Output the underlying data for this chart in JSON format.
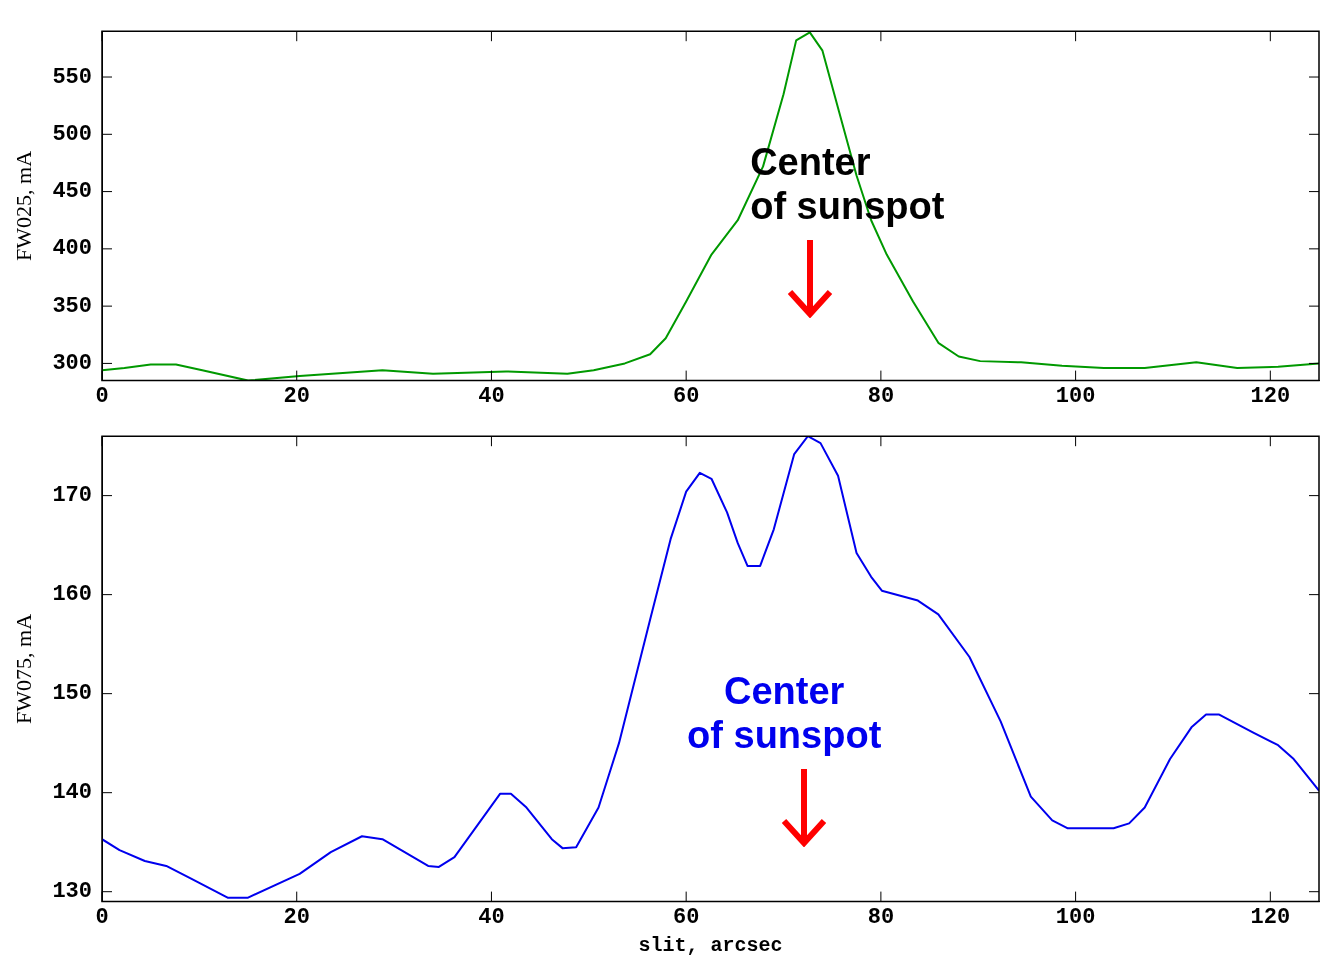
{
  "chart_data": [
    {
      "type": "line",
      "ylabel": "FW025, mA",
      "xlim": [
        0,
        125
      ],
      "xticks": [
        0,
        20,
        40,
        60,
        80,
        100,
        120
      ],
      "ylim": [
        285,
        590
      ],
      "yticks": [
        300,
        350,
        400,
        450,
        500,
        550
      ],
      "grid": false,
      "legend": false,
      "marker": "none",
      "line_style": "solid",
      "annotations": [
        "Center\nof sunspot"
      ],
      "series": [
        {
          "color": "#009900",
          "x": [
            0,
            2.3,
            5,
            7.6,
            10.3,
            15,
            20.3,
            28.8,
            34,
            41.5,
            47.8,
            50.5,
            53.7,
            56.3,
            57.9,
            60,
            62.6,
            65.3,
            67.9,
            70,
            71.3,
            72.7,
            74,
            75.6,
            77.5,
            79,
            80.6,
            83.3,
            85.9,
            88,
            90.2,
            94.4,
            98.6,
            102.9,
            107.1,
            112.4,
            116.6,
            120.8,
            125
          ],
          "values": [
            294,
            296,
            299,
            299,
            294,
            285,
            289,
            294,
            291,
            293,
            291,
            294,
            300,
            308,
            322,
            354,
            395,
            425,
            472,
            535,
            582,
            589,
            573,
            523,
            464,
            425,
            395,
            354,
            318,
            306,
            302,
            301,
            298,
            296,
            296,
            301,
            296,
            297,
            300
          ]
        }
      ]
    },
    {
      "type": "line",
      "xlabel": "slit, arcsec",
      "ylabel": "FW075, mA",
      "xlim": [
        0,
        125
      ],
      "xticks": [
        0,
        20,
        40,
        60,
        80,
        100,
        120
      ],
      "ylim": [
        129,
        176
      ],
      "yticks": [
        130,
        140,
        150,
        160,
        170
      ],
      "grid": false,
      "legend": false,
      "marker": "none",
      "line_style": "solid",
      "annotations": [
        "Center\nof sunspot"
      ],
      "series": [
        {
          "color": "#0000ee",
          "x": [
            0,
            1.8,
            4.4,
            6.6,
            9.2,
            12.9,
            15,
            20.3,
            23.5,
            26.7,
            28.8,
            33.5,
            34.6,
            36.2,
            40.9,
            42,
            43.6,
            46.2,
            47.3,
            48.7,
            51,
            53.1,
            56.3,
            58.4,
            60,
            61.4,
            62.6,
            64.2,
            65.3,
            66.3,
            67.6,
            69,
            71.1,
            72.5,
            73.8,
            75.6,
            77.5,
            79,
            80.1,
            83.8,
            85.9,
            89.1,
            92.3,
            95.4,
            97.6,
            99.2,
            103.9,
            105.5,
            107.1,
            109.7,
            111.9,
            113.4,
            114.7,
            118.2,
            120.8,
            122.4,
            125
          ],
          "values": [
            135.3,
            134.2,
            133.1,
            132.6,
            131.3,
            129.4,
            129.4,
            131.8,
            134,
            135.6,
            135.3,
            132.6,
            132.5,
            133.5,
            139.9,
            139.9,
            138.5,
            135.3,
            134.4,
            134.5,
            138.5,
            145,
            157.5,
            165.6,
            170.4,
            172.3,
            171.7,
            168.3,
            165.2,
            162.9,
            162.9,
            166.6,
            174.2,
            176,
            175.3,
            172,
            164.2,
            161.8,
            160.4,
            159.4,
            158,
            153.7,
            147.2,
            139.6,
            137.2,
            136.4,
            136.4,
            136.9,
            138.5,
            143.4,
            146.6,
            147.9,
            147.9,
            146.1,
            144.8,
            143.4,
            140.2
          ]
        }
      ]
    }
  ]
}
